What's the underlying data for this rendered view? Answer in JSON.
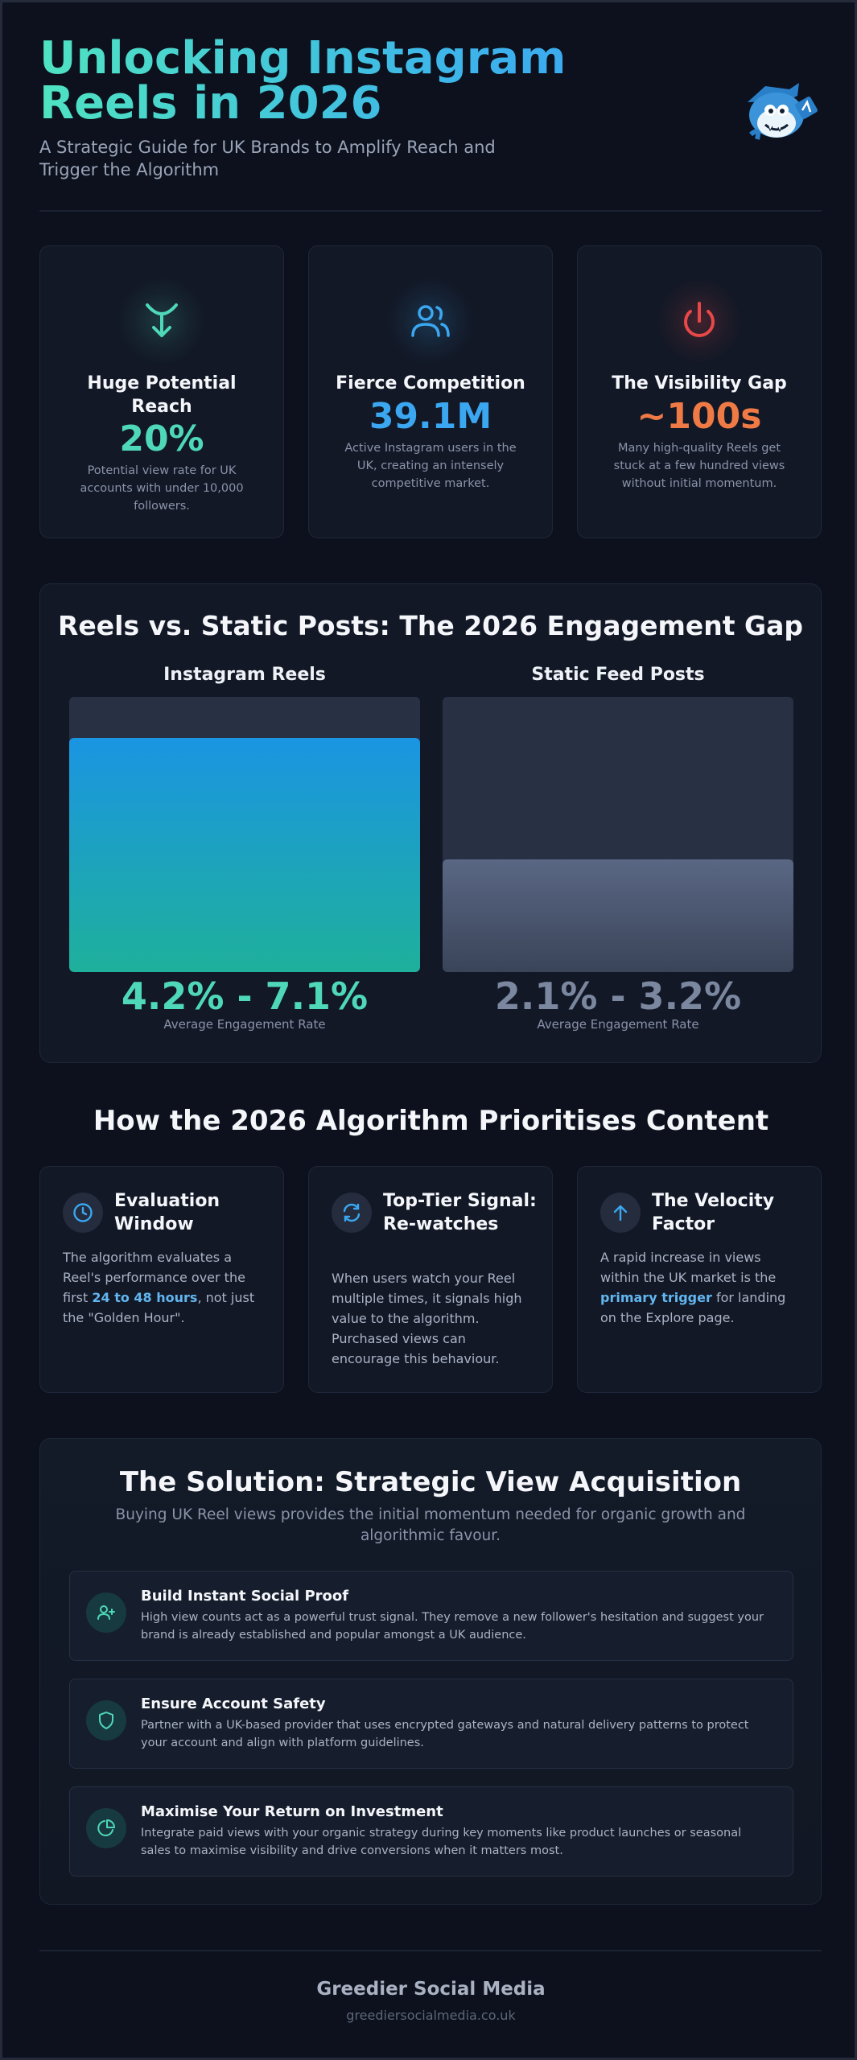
{
  "header": {
    "title": "Unlocking Instagram Reels in 2026",
    "subtitle": "A Strategic Guide for UK Brands to Amplify Reach and Trigger the Algorithm",
    "mascot_icon": "mascot-logo-icon"
  },
  "stats": [
    {
      "icon": "funnel-arrow-icon",
      "title": "Huge Potential Reach",
      "value": "20%",
      "description": "Potential view rate for UK accounts with under 10,000 followers.",
      "color": "#4fd8b8"
    },
    {
      "icon": "users-icon",
      "title": "Fierce Competition",
      "value": "39.1M",
      "description": "Active Instagram users in the UK, creating an intensely competitive market.",
      "color": "#3aa7f0"
    },
    {
      "icon": "power-icon",
      "title": "The Visibility Gap",
      "value": "~100s",
      "description": "Many high-quality Reels get stuck at a few hundred views without initial momentum.",
      "color": "#ef7a45"
    }
  ],
  "engagement": {
    "title": "Reels vs. Static Posts: The 2026 Engagement Gap",
    "columns": [
      {
        "label": "Instagram Reels",
        "value": "4.2% - 7.1%",
        "caption": "Average Engagement Rate",
        "fill_fraction": 0.85
      },
      {
        "label": "Static Feed Posts",
        "value": "2.1% - 3.2%",
        "caption": "Average Engagement Rate",
        "fill_fraction": 0.41
      }
    ]
  },
  "algorithm": {
    "title": "How the 2026 Algorithm Prioritises Content",
    "cards": [
      {
        "icon": "clock-icon",
        "title": "Evaluation Window",
        "body_before": "The algorithm evaluates a Reel's performance over the first ",
        "highlight": "24 to 48 hours",
        "body_after": ", not just the \"Golden Hour\"."
      },
      {
        "icon": "refresh-icon",
        "title": "Top-Tier Signal: Re-watches",
        "body": "When users watch your Reel multiple times, it signals high value to the algorithm. Purchased views can encourage this behaviour."
      },
      {
        "icon": "arrow-up-icon",
        "title": "The Velocity Factor",
        "body_before": "A rapid increase in views within the UK market is the ",
        "highlight": "primary trigger",
        "body_after": " for landing on the Explore page."
      }
    ]
  },
  "solution": {
    "title": "The Solution: Strategic View Acquisition",
    "subtitle": "Buying UK Reel views provides the initial momentum needed for organic growth and algorithmic favour.",
    "items": [
      {
        "icon": "user-plus-icon",
        "title": "Build Instant Social Proof",
        "body": "High view counts act as a powerful trust signal. They remove a new follower's hesitation and suggest your brand is already established and popular amongst a UK audience."
      },
      {
        "icon": "shield-icon",
        "title": "Ensure Account Safety",
        "body": "Partner with a UK-based provider that uses encrypted gateways and natural delivery patterns to protect your account and align with platform guidelines."
      },
      {
        "icon": "pie-chart-icon",
        "title": "Maximise Your Return on Investment",
        "body": "Integrate paid views with your organic strategy during key moments like product launches or seasonal sales to maximise visibility and drive conversions when it matters most."
      }
    ]
  },
  "footer": {
    "brand": "Greedier Social Media",
    "url": "greediersocialmedia.co.uk"
  }
}
